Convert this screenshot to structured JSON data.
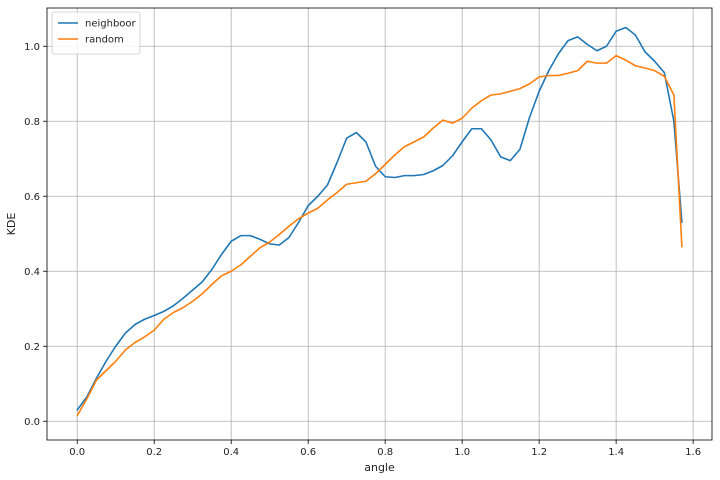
{
  "chart_data": {
    "type": "line",
    "xlabel": "angle",
    "ylabel": "KDE",
    "xlim": [
      -0.0785,
      1.649
    ],
    "ylim": [
      -0.05,
      1.102
    ],
    "grid": true,
    "legend_position": "top-left",
    "xticks": [
      {
        "value": 0.0,
        "label": "0.0"
      },
      {
        "value": 0.2,
        "label": "0.2"
      },
      {
        "value": 0.4,
        "label": "0.4"
      },
      {
        "value": 0.6,
        "label": "0.6"
      },
      {
        "value": 0.8,
        "label": "0.8"
      },
      {
        "value": 1.0,
        "label": "1.0"
      },
      {
        "value": 1.2,
        "label": "1.2"
      },
      {
        "value": 1.4,
        "label": "1.4"
      },
      {
        "value": 1.6,
        "label": "1.6"
      }
    ],
    "yticks": [
      {
        "value": 0.0,
        "label": "0.0"
      },
      {
        "value": 0.2,
        "label": "0.2"
      },
      {
        "value": 0.4,
        "label": "0.4"
      },
      {
        "value": 0.6,
        "label": "0.6"
      },
      {
        "value": 0.8,
        "label": "0.8"
      },
      {
        "value": 1.0,
        "label": "1.0"
      }
    ],
    "series": [
      {
        "name": "neighboor",
        "color": "#1f77b4",
        "x": [
          0.0,
          0.025,
          0.05,
          0.075,
          0.1,
          0.125,
          0.15,
          0.175,
          0.2,
          0.225,
          0.25,
          0.275,
          0.3,
          0.325,
          0.35,
          0.375,
          0.4,
          0.425,
          0.45,
          0.475,
          0.5,
          0.525,
          0.55,
          0.575,
          0.6,
          0.625,
          0.65,
          0.675,
          0.7,
          0.725,
          0.75,
          0.775,
          0.8,
          0.825,
          0.85,
          0.875,
          0.9,
          0.925,
          0.95,
          0.975,
          1.0,
          1.025,
          1.05,
          1.075,
          1.1,
          1.125,
          1.15,
          1.175,
          1.2,
          1.225,
          1.25,
          1.275,
          1.3,
          1.325,
          1.35,
          1.375,
          1.4,
          1.425,
          1.45,
          1.475,
          1.5,
          1.525,
          1.55,
          1.5708
        ],
        "y": [
          0.03,
          0.065,
          0.115,
          0.16,
          0.2,
          0.235,
          0.258,
          0.272,
          0.282,
          0.293,
          0.308,
          0.328,
          0.35,
          0.372,
          0.405,
          0.445,
          0.48,
          0.495,
          0.495,
          0.485,
          0.473,
          0.47,
          0.49,
          0.53,
          0.575,
          0.6,
          0.63,
          0.69,
          0.755,
          0.77,
          0.745,
          0.68,
          0.652,
          0.65,
          0.655,
          0.655,
          0.658,
          0.668,
          0.682,
          0.708,
          0.745,
          0.78,
          0.78,
          0.75,
          0.705,
          0.695,
          0.725,
          0.81,
          0.88,
          0.935,
          0.98,
          1.015,
          1.025,
          1.005,
          0.988,
          1.0,
          1.04,
          1.05,
          1.03,
          0.985,
          0.96,
          0.93,
          0.8,
          0.53
        ]
      },
      {
        "name": "random",
        "color": "#ff7f0e",
        "x": [
          0.0,
          0.025,
          0.05,
          0.075,
          0.1,
          0.125,
          0.15,
          0.175,
          0.2,
          0.225,
          0.25,
          0.275,
          0.3,
          0.325,
          0.35,
          0.375,
          0.4,
          0.425,
          0.45,
          0.475,
          0.5,
          0.525,
          0.55,
          0.575,
          0.6,
          0.625,
          0.65,
          0.675,
          0.7,
          0.725,
          0.75,
          0.775,
          0.8,
          0.825,
          0.85,
          0.875,
          0.9,
          0.925,
          0.95,
          0.975,
          1.0,
          1.025,
          1.05,
          1.075,
          1.1,
          1.125,
          1.15,
          1.175,
          1.2,
          1.225,
          1.25,
          1.275,
          1.3,
          1.325,
          1.35,
          1.375,
          1.4,
          1.425,
          1.45,
          1.475,
          1.5,
          1.525,
          1.55,
          1.5708
        ],
        "y": [
          0.015,
          0.06,
          0.11,
          0.135,
          0.16,
          0.19,
          0.21,
          0.225,
          0.243,
          0.272,
          0.29,
          0.303,
          0.32,
          0.34,
          0.365,
          0.388,
          0.4,
          0.417,
          0.44,
          0.463,
          0.478,
          0.498,
          0.52,
          0.54,
          0.555,
          0.568,
          0.59,
          0.61,
          0.632,
          0.636,
          0.64,
          0.66,
          0.685,
          0.71,
          0.732,
          0.745,
          0.758,
          0.782,
          0.803,
          0.795,
          0.808,
          0.835,
          0.855,
          0.87,
          0.873,
          0.88,
          0.887,
          0.9,
          0.918,
          0.922,
          0.922,
          0.928,
          0.935,
          0.96,
          0.955,
          0.955,
          0.975,
          0.963,
          0.948,
          0.942,
          0.935,
          0.92,
          0.87,
          0.465
        ]
      }
    ]
  }
}
